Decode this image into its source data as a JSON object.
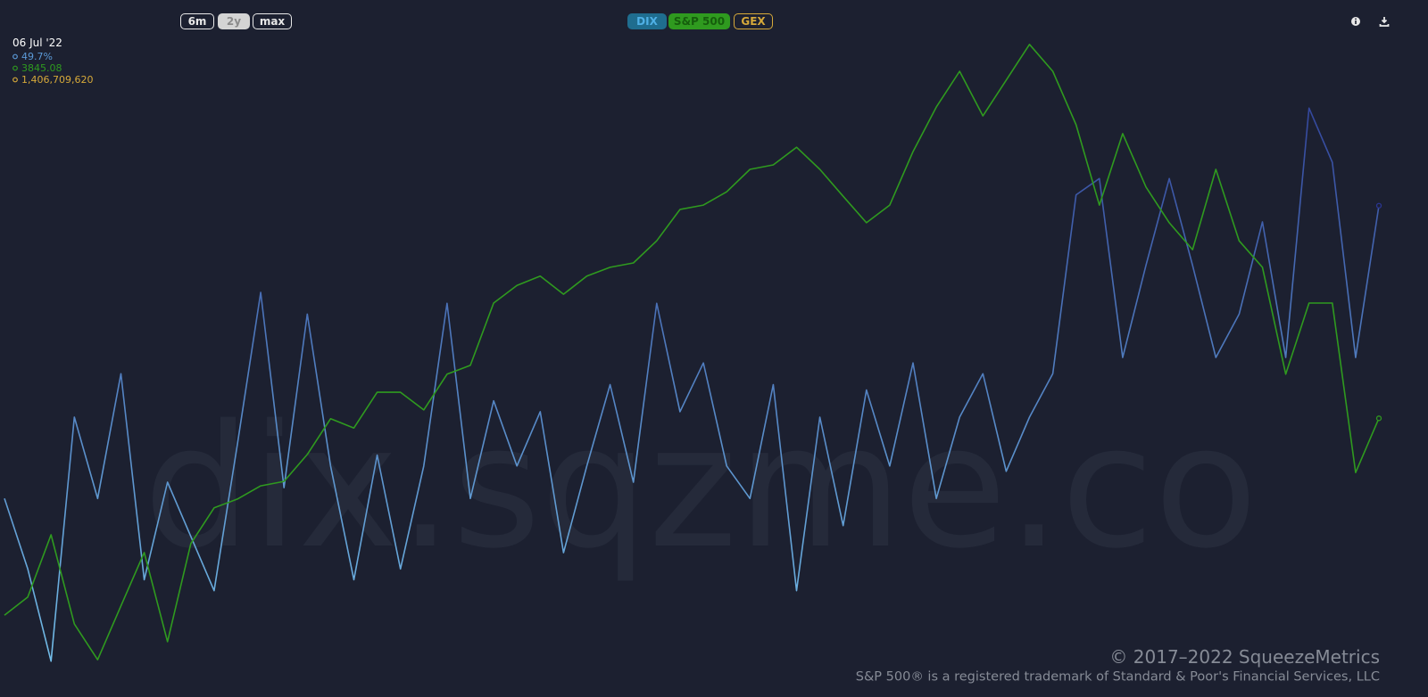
{
  "chart_data": {
    "type": "line",
    "watermark": "dix.sqzme.co",
    "range_buttons": [
      "6m",
      "2y",
      "max"
    ],
    "selected_range": "2y",
    "ylim": [
      41,
      53
    ],
    "y2lim": [
      3200,
      4820
    ],
    "series": [
      {
        "name": "DIX",
        "color": "#1f6d8f",
        "gradient": [
          "#2a3591",
          "#74c0ea"
        ],
        "visible": true,
        "values": [
          44.3,
          43.0,
          41.3,
          45.8,
          44.3,
          46.6,
          42.8,
          44.6,
          43.6,
          42.6,
          45.3,
          48.1,
          44.5,
          47.7,
          44.9,
          42.8,
          45.1,
          43.0,
          44.9,
          47.9,
          44.3,
          46.1,
          44.9,
          45.9,
          43.3,
          44.9,
          46.4,
          44.6,
          47.9,
          45.9,
          46.8,
          44.9,
          44.3,
          46.4,
          42.6,
          45.8,
          43.8,
          46.3,
          44.9,
          46.8,
          44.3,
          45.8,
          46.6,
          44.8,
          45.8,
          46.6,
          49.9,
          50.2,
          46.9,
          48.6,
          50.2,
          48.6,
          46.9,
          47.7,
          49.4,
          46.9,
          51.5,
          50.5,
          46.9,
          49.7
        ]
      },
      {
        "name": "S&P 500",
        "color": "#2f9a1f",
        "axis": "y2",
        "visible": true,
        "values": [
          3355,
          3400,
          3555,
          3333,
          3244,
          3378,
          3511,
          3289,
          3533,
          3622,
          3644,
          3677,
          3688,
          3755,
          3844,
          3821,
          3910,
          3910,
          3866,
          3955,
          3977,
          4132,
          4176,
          4199,
          4154,
          4199,
          4221,
          4232,
          4287,
          4365,
          4376,
          4409,
          4465,
          4476,
          4520,
          4465,
          4398,
          4332,
          4376,
          4509,
          4620,
          4709,
          4598,
          4687,
          4776,
          4709,
          4576,
          4376,
          4554,
          4421,
          4332,
          4265,
          4465,
          4287,
          4221,
          3955,
          4132,
          4132,
          3710,
          3845.08
        ]
      },
      {
        "name": "GEX",
        "color": "#d6a93a",
        "visible": false
      }
    ],
    "tooltip": {
      "date": "06 Jul '22",
      "entries": [
        {
          "value": 49.7,
          "label": "49.7%"
        },
        3845.08,
        {
          "value": 1406709620,
          "label": "1,406,709,620"
        }
      ]
    },
    "copyright": "© 2017–2022 SqueezeMetrics",
    "trademark": "S&P 500® is a registered trademark of Standard & Poor's Financial Services, LLC"
  }
}
